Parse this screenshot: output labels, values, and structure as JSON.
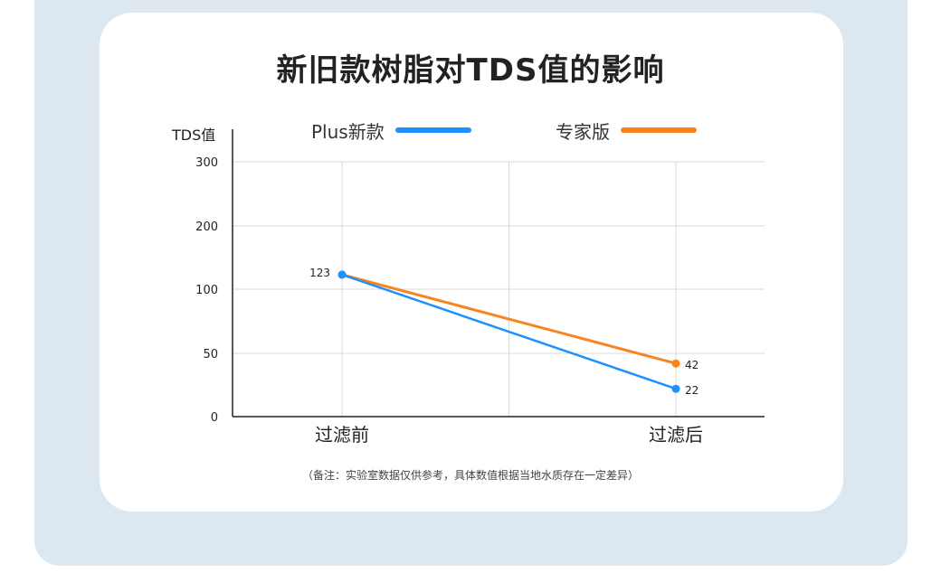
{
  "chart_data": {
    "type": "line",
    "title": "新旧款树脂对TDS值的影响",
    "ylabel": "TDS值",
    "xlabel": "",
    "categories": [
      "过滤前",
      "过滤后"
    ],
    "yticks": [
      0,
      50,
      100,
      200,
      300
    ],
    "series": [
      {
        "name": "Plus新款",
        "color": "#1e90ff",
        "values": [
          123,
          22
        ]
      },
      {
        "name": "专家版",
        "color": "#f7841f",
        "values": [
          123,
          42
        ]
      }
    ],
    "data_labels": [
      {
        "text": "123",
        "series": 0,
        "index": 0
      },
      {
        "text": "42",
        "series": 1,
        "index": 1
      },
      {
        "text": "22",
        "series": 0,
        "index": 1
      }
    ],
    "grid": true,
    "legend": "top"
  },
  "note": "（备注：实验室数据仅供参考，具体数值根据当地水质存在一定差异）"
}
